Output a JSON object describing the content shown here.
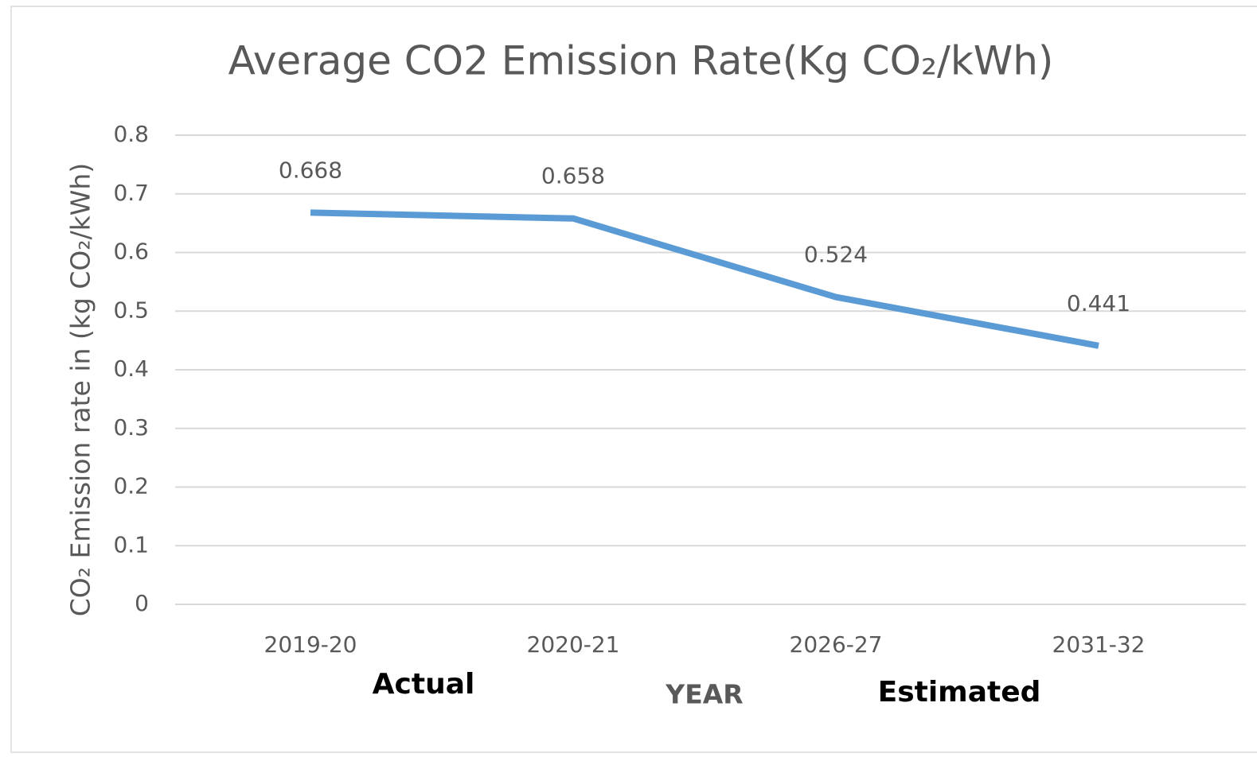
{
  "chart_data": {
    "type": "line",
    "title": "Average CO2 Emission Rate(Kg CO₂/kWh)",
    "y_label": "CO₂ Emission rate in (kg CO₂/kWh)",
    "x_label": "YEAR",
    "annotations": [
      "Actual",
      "Estimated"
    ],
    "categories": [
      "2019-20",
      "2020-21",
      "2026-27",
      "2031-32"
    ],
    "values": [
      0.668,
      0.658,
      0.524,
      0.441
    ],
    "color": "#5b9bd5",
    "ylim": [
      0,
      0.8
    ],
    "yticks": [
      0,
      0.1,
      0.2,
      0.3,
      0.4,
      0.5,
      0.6,
      0.7,
      0.8
    ],
    "grid": true
  }
}
